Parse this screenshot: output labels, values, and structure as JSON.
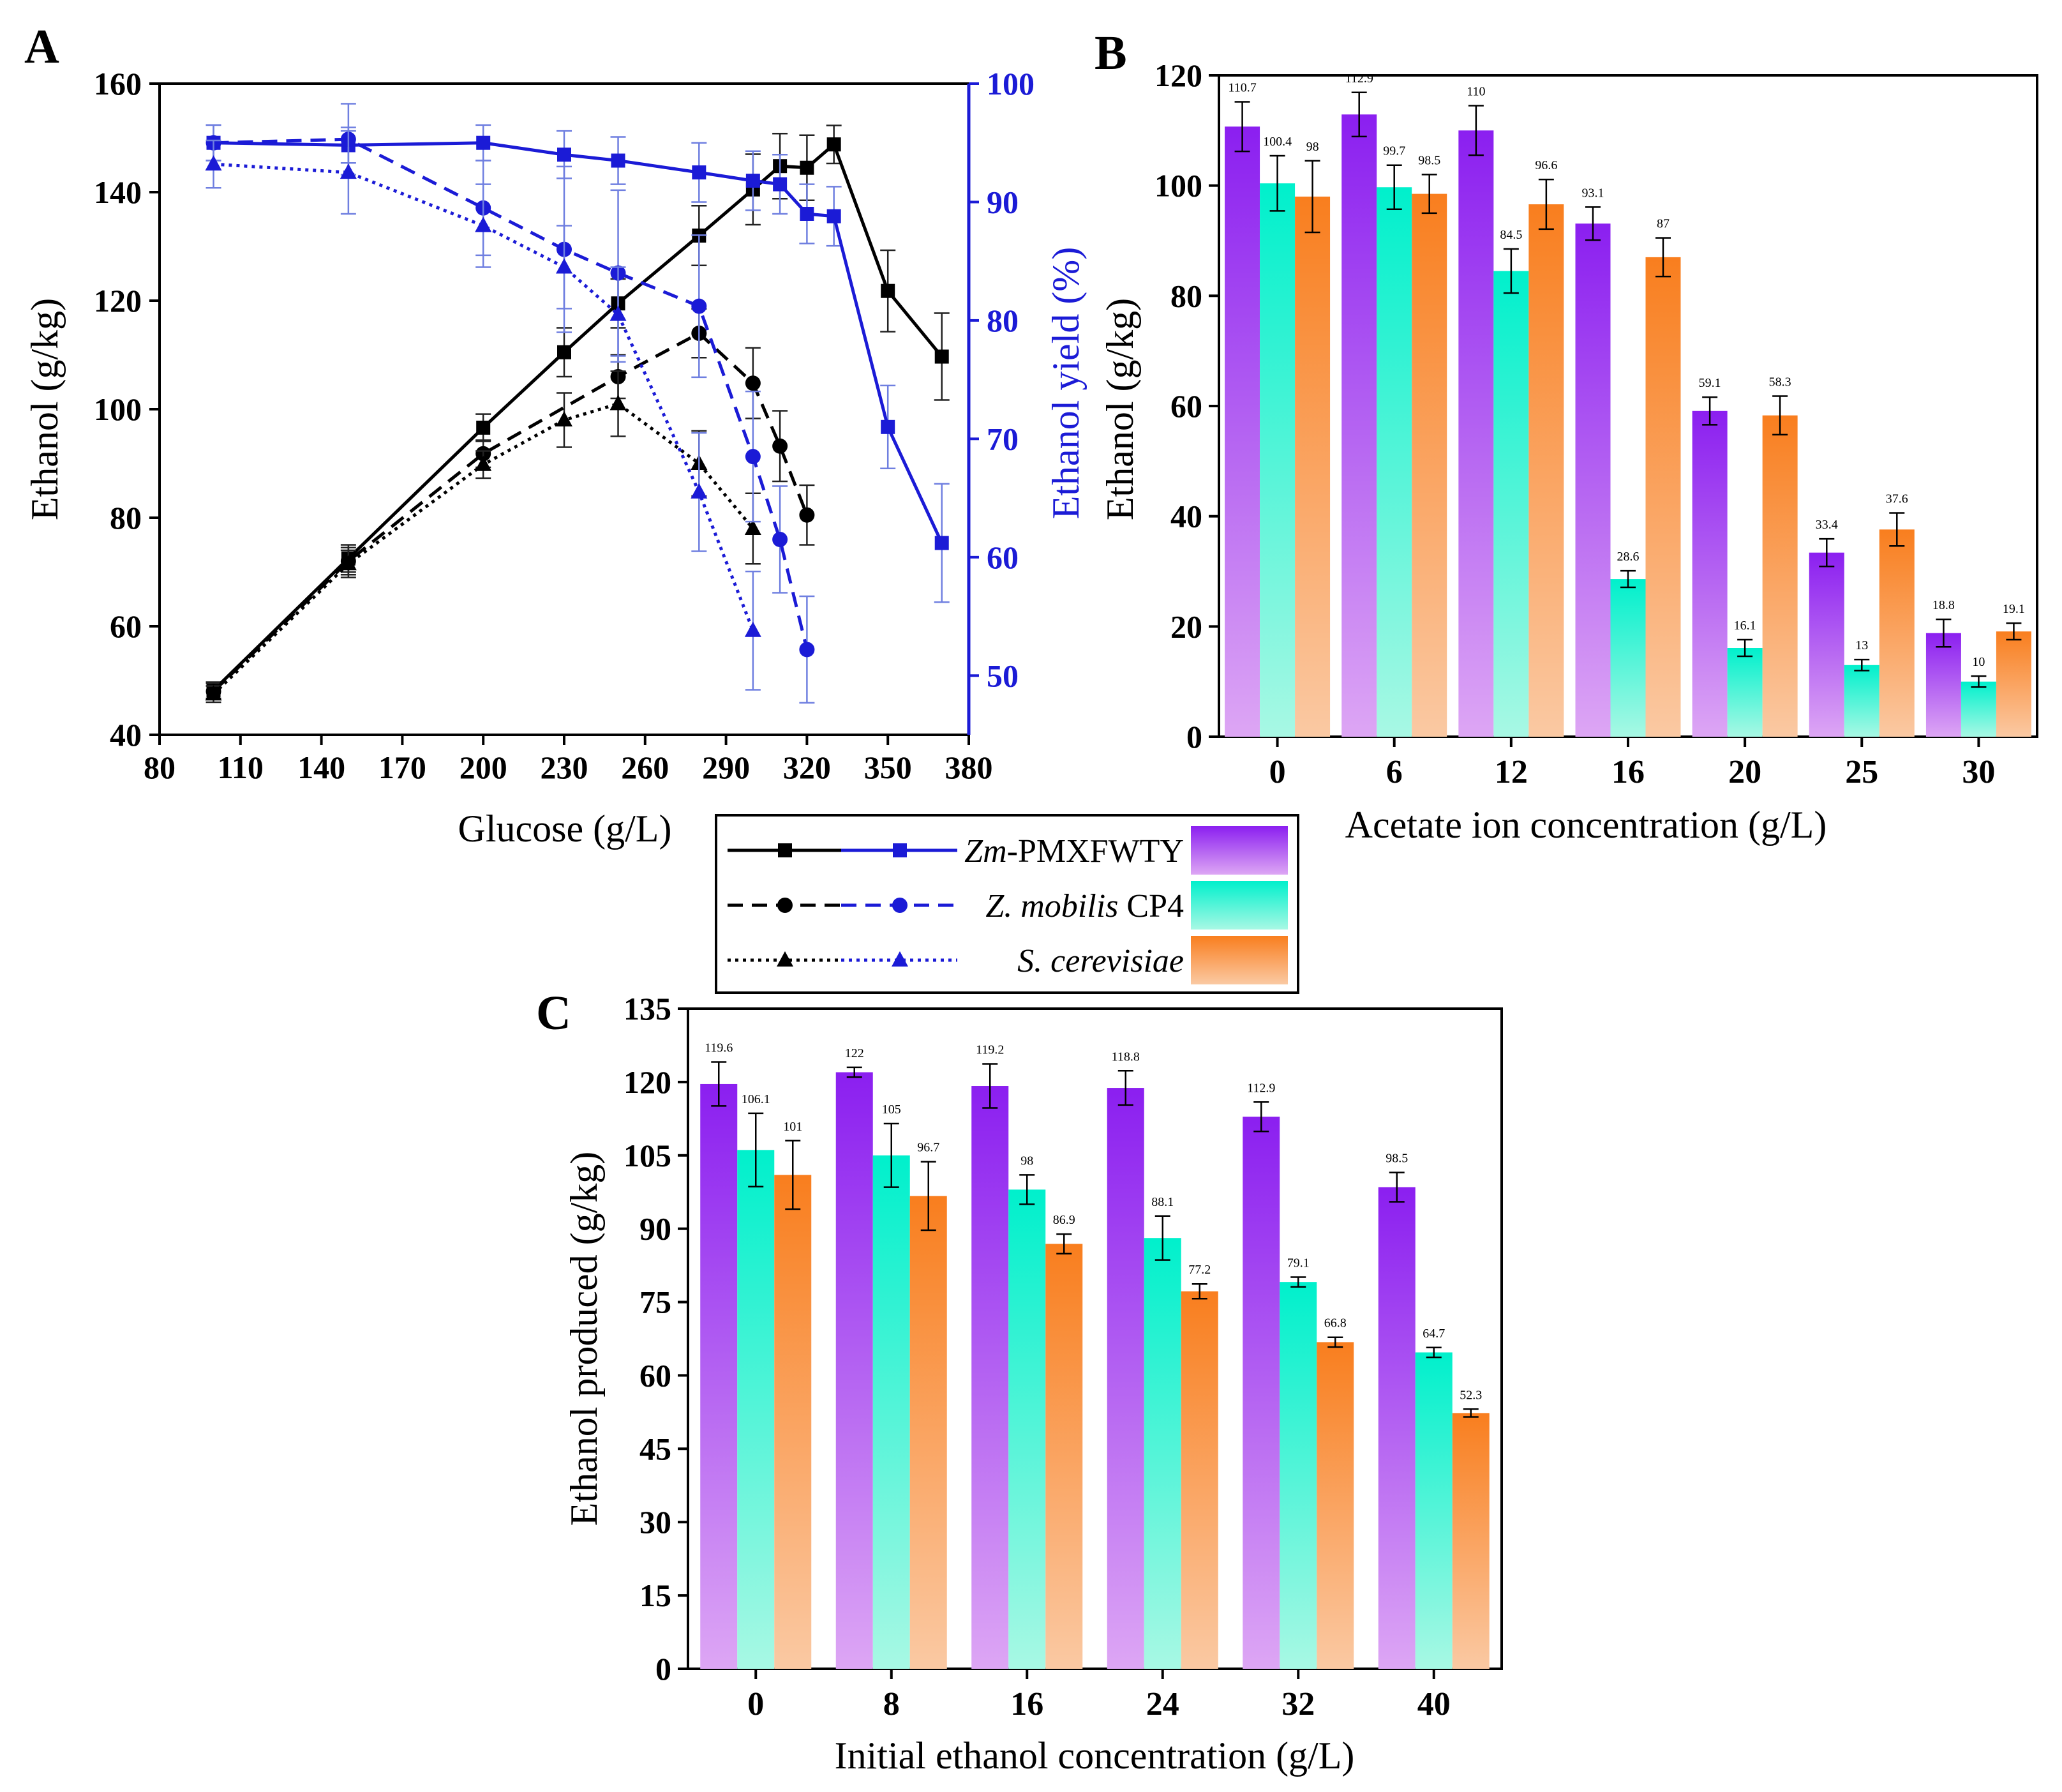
{
  "colors": {
    "zm": "#8B1FF0",
    "zm_light": "#DDA6F4",
    "cp4": "#00F0CC",
    "cp4_light": "#A8F8E4",
    "sc": "#F97E1E",
    "sc_light": "#FAC9A3",
    "yield_axis": "#1B1BD6",
    "ethanol_line": "#000000"
  },
  "legend": {
    "entries": [
      {
        "italic": "Zm",
        "rest": "-PMXFWTY"
      },
      {
        "italic": "Z. mobilis",
        "rest": " CP4"
      },
      {
        "italic": "S. cerevisiae",
        "rest": ""
      }
    ]
  },
  "chart_data": [
    {
      "panel": "A",
      "type": "line",
      "panel_label": "A",
      "xlabel": "Glucose (g/L)",
      "ylabel": "Ethanol (g/kg)",
      "y2label": "Ethanol yield (%)",
      "xlim": [
        80,
        380
      ],
      "ylim": [
        40,
        160
      ],
      "y2lim": [
        45,
        100
      ],
      "xticks": [
        80,
        110,
        140,
        170,
        200,
        230,
        260,
        290,
        320,
        350,
        380
      ],
      "yticks": [
        40,
        60,
        80,
        100,
        120,
        140,
        160
      ],
      "y2ticks": [
        50,
        60,
        70,
        80,
        90,
        100
      ],
      "series": [
        {
          "name": "Zm-PMXFWTY ethanol",
          "axis": "left",
          "marker": "square",
          "dash": "solid",
          "x": [
            100,
            150,
            200,
            230,
            250,
            280,
            300,
            310,
            320,
            330,
            350,
            370
          ],
          "y": [
            48.2,
            72.5,
            96.6,
            110.5,
            119.5,
            132,
            140.5,
            144.8,
            144.5,
            148.8,
            121.8,
            109.7
          ],
          "err": [
            1.5,
            2.5,
            2.5,
            4.5,
            4.5,
            5.5,
            6.5,
            6,
            6,
            3.5,
            7.5,
            8
          ]
        },
        {
          "name": "Z. mobilis CP4 ethanol",
          "axis": "left",
          "marker": "circle",
          "dash": "dashed",
          "x": [
            100,
            150,
            200,
            250,
            280,
            300,
            310,
            320
          ],
          "y": [
            48,
            72,
            91.8,
            106,
            114,
            104.8,
            93.2,
            80.5
          ],
          "err": [
            1.5,
            2.5,
            2.5,
            4,
            4.5,
            6.5,
            6.5,
            5.5
          ]
        },
        {
          "name": "S. cerevisiae ethanol",
          "axis": "left",
          "marker": "triangle",
          "dash": "dotted",
          "x": [
            100,
            150,
            200,
            230,
            250,
            280,
            300
          ],
          "y": [
            47.5,
            71.5,
            89.8,
            98,
            101,
            90,
            78
          ],
          "err": [
            1.5,
            2.5,
            2.5,
            5,
            6,
            6,
            6.5
          ]
        },
        {
          "name": "Zm-PMXFWTY yield",
          "axis": "right",
          "marker": "square",
          "dash": "solid",
          "x": [
            100,
            150,
            200,
            230,
            250,
            280,
            300,
            310,
            320,
            330,
            350,
            370
          ],
          "y": [
            95,
            94.8,
            95,
            94,
            93.5,
            92.5,
            91.8,
            91.5,
            89,
            88.8,
            71,
            61.2
          ],
          "err": [
            1.5,
            1.5,
            1.5,
            2,
            2,
            2.5,
            2.5,
            2.5,
            2.5,
            2.5,
            3.5,
            5
          ]
        },
        {
          "name": "Z. mobilis CP4 yield",
          "axis": "right",
          "marker": "circle",
          "dash": "dashed",
          "x": [
            100,
            150,
            200,
            230,
            250,
            280,
            300,
            310,
            320
          ],
          "y": [
            95,
            95.3,
            89.5,
            86,
            84,
            81.2,
            68.5,
            61.5,
            52.2
          ],
          "err": [
            1.5,
            3,
            4,
            7,
            7,
            6,
            5.5,
            4.5,
            4.5
          ]
        },
        {
          "name": "S. cerevisiae yield",
          "axis": "right",
          "marker": "triangle",
          "dash": "dotted",
          "x": [
            100,
            150,
            200,
            230,
            250,
            280,
            300
          ],
          "y": [
            93.2,
            92.5,
            88,
            84.5,
            80.5,
            65.5,
            53.8
          ],
          "err": [
            2,
            3.5,
            3.5,
            3.5,
            4,
            5,
            5
          ]
        }
      ]
    },
    {
      "panel": "B",
      "type": "bar",
      "panel_label": "B",
      "xlabel": "Acetate ion concentration (g/L)",
      "ylabel": "Ethanol (g/kg)",
      "ylim": [
        0,
        120
      ],
      "yticks": [
        0,
        20,
        40,
        60,
        80,
        100,
        120
      ],
      "categories": [
        "0",
        "6",
        "12",
        "16",
        "20",
        "25",
        "30"
      ],
      "series": [
        {
          "name": "Zm-PMXFWTY",
          "values": [
            110.7,
            112.9,
            110,
            93.1,
            59.1,
            33.4,
            18.8
          ],
          "labels": [
            "110.7",
            "112.9",
            "110",
            "93.1",
            "59.1",
            "33.4",
            "18.8"
          ],
          "err": [
            4.5,
            4,
            4.5,
            3,
            2.5,
            2.5,
            2.5
          ]
        },
        {
          "name": "Z. mobilis CP4",
          "values": [
            100.4,
            99.7,
            84.5,
            28.6,
            16.1,
            13,
            10
          ],
          "labels": [
            "100.4",
            "99.7",
            "84.5",
            "28.6",
            "16.1",
            "13",
            "10"
          ],
          "err": [
            5,
            4,
            4,
            1.5,
            1.5,
            1,
            1
          ]
        },
        {
          "name": "S. cerevisiae",
          "values": [
            98,
            98.5,
            96.6,
            87,
            58.3,
            37.6,
            19.1
          ],
          "labels": [
            "98",
            "98.5",
            "96.6",
            "87",
            "58.3",
            "37.6",
            "19.1"
          ],
          "err": [
            6.5,
            3.5,
            4.5,
            3.5,
            3.5,
            3,
            1.5
          ]
        }
      ]
    },
    {
      "panel": "C",
      "type": "bar",
      "panel_label": "C",
      "xlabel": "Initial ethanol concentration (g/L)",
      "ylabel": "Ethanol produced (g/kg)",
      "ylim": [
        0,
        135
      ],
      "yticks": [
        0,
        15,
        30,
        45,
        60,
        75,
        90,
        105,
        120,
        135
      ],
      "categories": [
        "0",
        "8",
        "16",
        "24",
        "32",
        "40"
      ],
      "series": [
        {
          "name": "Zm-PMXFWTY",
          "values": [
            119.6,
            122,
            119.2,
            118.8,
            112.9,
            98.5
          ],
          "labels": [
            "119.6",
            "122",
            "119.2",
            "118.8",
            "112.9",
            "98.5"
          ],
          "err": [
            4.5,
            1,
            4.5,
            3.5,
            3,
            3
          ]
        },
        {
          "name": "Z. mobilis CP4",
          "values": [
            106.1,
            105,
            98,
            88.1,
            79.1,
            64.7
          ],
          "labels": [
            "106.1",
            "105",
            "98",
            "88.1",
            "79.1",
            "64.7"
          ],
          "err": [
            7.5,
            6.5,
            3,
            4.5,
            1,
            1
          ]
        },
        {
          "name": "S. cerevisiae",
          "values": [
            101,
            96.7,
            86.9,
            77.2,
            66.8,
            52.3
          ],
          "labels": [
            "101",
            "96.7",
            "86.9",
            "77.2",
            "66.8",
            "52.3"
          ],
          "err": [
            7,
            7,
            2,
            1.5,
            1,
            0.8
          ]
        }
      ]
    }
  ]
}
